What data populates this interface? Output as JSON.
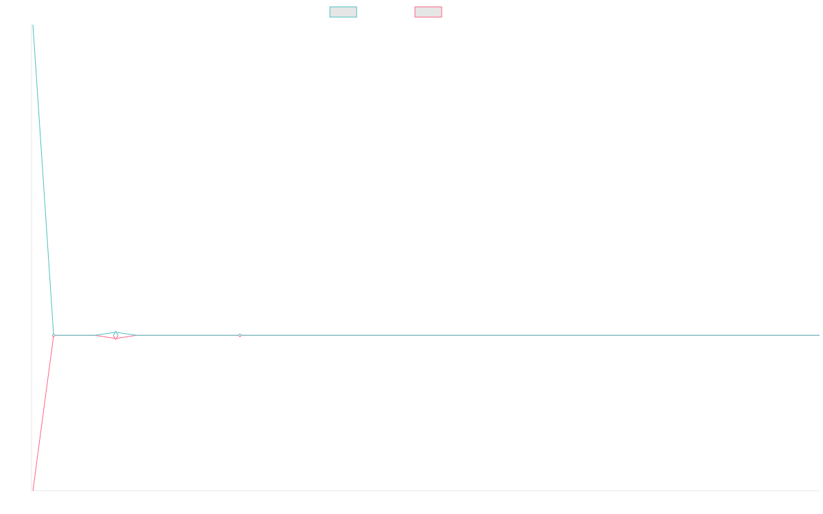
{
  "chart_data": {
    "type": "line",
    "x": [
      0,
      1,
      2,
      3,
      4,
      5,
      6,
      7,
      8,
      9,
      10,
      11,
      12,
      13,
      14,
      15,
      16,
      17,
      18,
      19,
      20,
      21,
      22,
      23,
      24,
      25,
      26,
      27,
      28,
      29,
      30,
      31,
      32,
      33,
      34,
      35,
      36,
      37,
      38
    ],
    "series": [
      {
        "name": "",
        "color": "#4bc0c0",
        "values": [
          1.0,
          0.0,
          0.0,
          0.0,
          0.01,
          0.0,
          0.0,
          0.0,
          0.0,
          0.0,
          0.0,
          0.0,
          0.0,
          0.0,
          0.0,
          0.0,
          0.0,
          0.0,
          0.0,
          0.0,
          0.0,
          0.0,
          0.0,
          0.0,
          0.0,
          0.0,
          0.0,
          0.0,
          0.0,
          0.0,
          0.0,
          0.0,
          0.0,
          0.0,
          0.0,
          0.0,
          0.0,
          0.0,
          0.0
        ]
      },
      {
        "name": "",
        "color": "#ff6384",
        "values": [
          -0.5,
          0.0,
          0.0,
          0.0,
          -0.01,
          0.0,
          0.0,
          0.0,
          0.0,
          0.0,
          0.0,
          0.0,
          0.0,
          0.0,
          0.0,
          0.0,
          0.0,
          0.0,
          0.0,
          0.0,
          0.0,
          0.0,
          0.0,
          0.0,
          0.0,
          0.0,
          0.0,
          0.0,
          0.0,
          0.0,
          0.0,
          0.0,
          0.0,
          0.0,
          0.0,
          0.0,
          0.0,
          0.0,
          0.0
        ]
      }
    ],
    "xlim": [
      0,
      38
    ],
    "ylim": [
      -0.5,
      1.0
    ],
    "markers": [
      {
        "series": 0,
        "index": 1,
        "size": "small"
      },
      {
        "series": 0,
        "index": 4,
        "size": "large"
      },
      {
        "series": 0,
        "index": 10,
        "size": "small"
      },
      {
        "series": 1,
        "index": 1,
        "size": "small"
      },
      {
        "series": 1,
        "index": 4,
        "size": "large"
      },
      {
        "series": 1,
        "index": 10,
        "size": "small"
      }
    ],
    "legend_position": "top-center",
    "grid": false,
    "title": "",
    "xlabel": "",
    "ylabel": ""
  }
}
